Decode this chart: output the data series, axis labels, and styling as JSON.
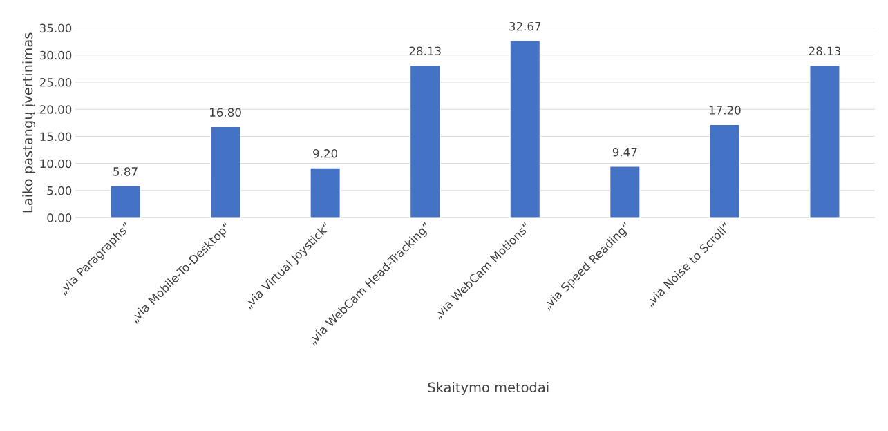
{
  "chart_data": {
    "type": "bar",
    "xlabel": "Skaitymo metodai",
    "ylabel": "Laiko pastangų įvertinimas",
    "categories": [
      "„via Paragraphs“",
      "„via Mobile-To-Desktop“",
      "„via Virtual Joystick“",
      "„via WebCam Head-Tracking“",
      "„via WebCam Motions“",
      "„via Speed Reading“",
      "„via Noise to Scroll“",
      null
    ],
    "values": [
      5.87,
      16.8,
      9.2,
      28.13,
      32.67,
      9.47,
      17.2,
      28.13
    ],
    "value_labels": [
      "5.87",
      "16.80",
      "9.20",
      "28.13",
      "32.67",
      "9.47",
      "17.20",
      "28.13"
    ],
    "color": "#4472c4",
    "ylim": [
      0,
      35
    ],
    "yticks": [
      {
        "value": 0,
        "label": "0.00"
      },
      {
        "value": 5,
        "label": "5.00"
      },
      {
        "value": 10,
        "label": "10.00"
      },
      {
        "value": 15,
        "label": "15.00"
      },
      {
        "value": 20,
        "label": "20.00"
      },
      {
        "value": 25,
        "label": "25.00"
      },
      {
        "value": 30,
        "label": "30.00"
      },
      {
        "value": 35,
        "label": "35.00"
      }
    ],
    "grid": "y",
    "legend": false
  }
}
